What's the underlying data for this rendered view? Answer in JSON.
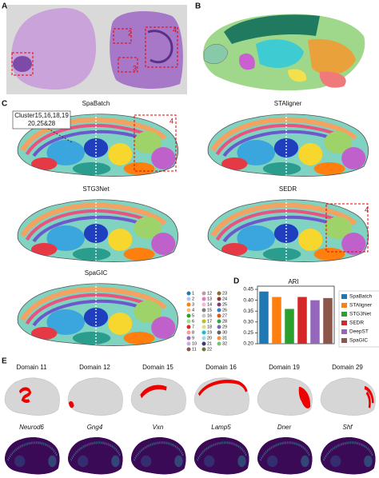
{
  "panel_labels": [
    "A",
    "B",
    "C",
    "D",
    "E"
  ],
  "panel_a": {
    "region_labels": [
      "2",
      "3",
      "4"
    ]
  },
  "panel_c": {
    "methods": [
      "SpaBatch",
      "STAligner",
      "STG3Net",
      "SEDR",
      "SpaGIC"
    ],
    "annotation": [
      "Cluster15,16,18,19",
      "20,25&28"
    ],
    "region_labels": [
      "4",
      "4"
    ],
    "cluster_legend": [
      "1",
      "2",
      "3",
      "4",
      "5",
      "6",
      "7",
      "8",
      "9",
      "10",
      "11",
      "12",
      "13",
      "14",
      "15",
      "16",
      "17",
      "18",
      "19",
      "20",
      "21",
      "22",
      "23",
      "24",
      "25",
      "26",
      "27",
      "28",
      "29",
      "30",
      "31",
      "32"
    ]
  },
  "chart_data": {
    "type": "bar",
    "title": "ARI",
    "categories": [
      "SpaBatch",
      "STAligner",
      "STG3Net",
      "SEDR",
      "DeepST",
      "SpaGIC"
    ],
    "values": [
      0.44,
      0.415,
      0.36,
      0.415,
      0.4,
      0.41
    ],
    "colors": [
      "#1f77b4",
      "#ff7f0e",
      "#2ca02c",
      "#d62728",
      "#9467bd",
      "#8c564b"
    ],
    "ylim": [
      0.2,
      0.45
    ],
    "yticks": [
      {
        "value": 0.2,
        "label": "0.20"
      },
      {
        "value": 0.25,
        "label": "0.25"
      },
      {
        "value": 0.3,
        "label": "0.30"
      },
      {
        "value": 0.35,
        "label": "0.35"
      },
      {
        "value": 0.4,
        "label": "0.40"
      },
      {
        "value": 0.45,
        "label": "0.45"
      }
    ],
    "legend": "right"
  },
  "panel_e": {
    "domains": [
      "Domain 11",
      "Domain 12",
      "Domain 15",
      "Domain 16",
      "Domain 19",
      "Domain 29"
    ],
    "genes": [
      "Neurod6",
      "Gng4",
      "Vxn",
      "Lamp5",
      "Dner",
      "Shf"
    ]
  }
}
